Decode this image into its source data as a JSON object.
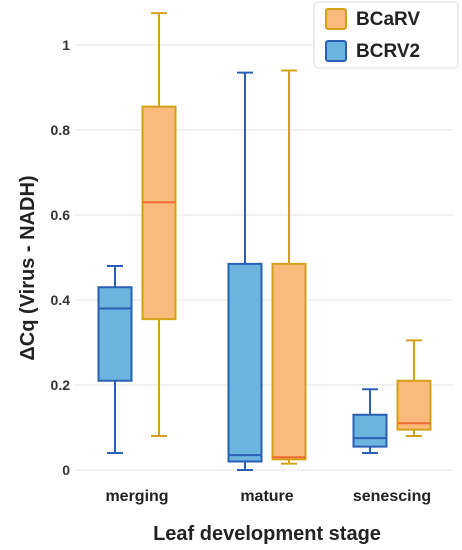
{
  "chart_data": {
    "type": "box",
    "xlabel": "Leaf development stage",
    "ylabel": "ΔCq (Virus - NADH)",
    "ylim": [
      -0.02,
      1.08
    ],
    "yticks": [
      0,
      0.2,
      0.4,
      0.6,
      0.8,
      1
    ],
    "ytick_labels": [
      "0",
      "0.2",
      "0.4",
      "0.6",
      "0.8",
      "1"
    ],
    "grid": true,
    "legend_position": "top-right",
    "categories": [
      "merging",
      "mature",
      "senescing"
    ],
    "series": [
      {
        "name": "BCRV2",
        "fill": "#6bb5df",
        "stroke": "#2a5fb5",
        "boxes": [
          {
            "min": 0.04,
            "q1": 0.21,
            "median": 0.38,
            "q3": 0.43,
            "max": 0.48
          },
          {
            "min": 0.0,
            "q1": 0.02,
            "median": 0.035,
            "q3": 0.485,
            "max": 0.935
          },
          {
            "min": 0.04,
            "q1": 0.055,
            "median": 0.075,
            "q3": 0.13,
            "max": 0.19
          }
        ]
      },
      {
        "name": "BCaRV",
        "fill": "#fbb97c",
        "stroke": "#d4a017",
        "median_stroke": "#ee6a35",
        "boxes": [
          {
            "min": 0.08,
            "q1": 0.355,
            "median": 0.63,
            "q3": 0.855,
            "max": 1.075
          },
          {
            "min": 0.015,
            "q1": 0.025,
            "median": 0.03,
            "q3": 0.485,
            "max": 0.94
          },
          {
            "min": 0.08,
            "q1": 0.095,
            "median": 0.11,
            "q3": 0.21,
            "max": 0.305
          }
        ]
      }
    ],
    "legend_order": [
      "BCaRV",
      "BCRV2"
    ]
  }
}
